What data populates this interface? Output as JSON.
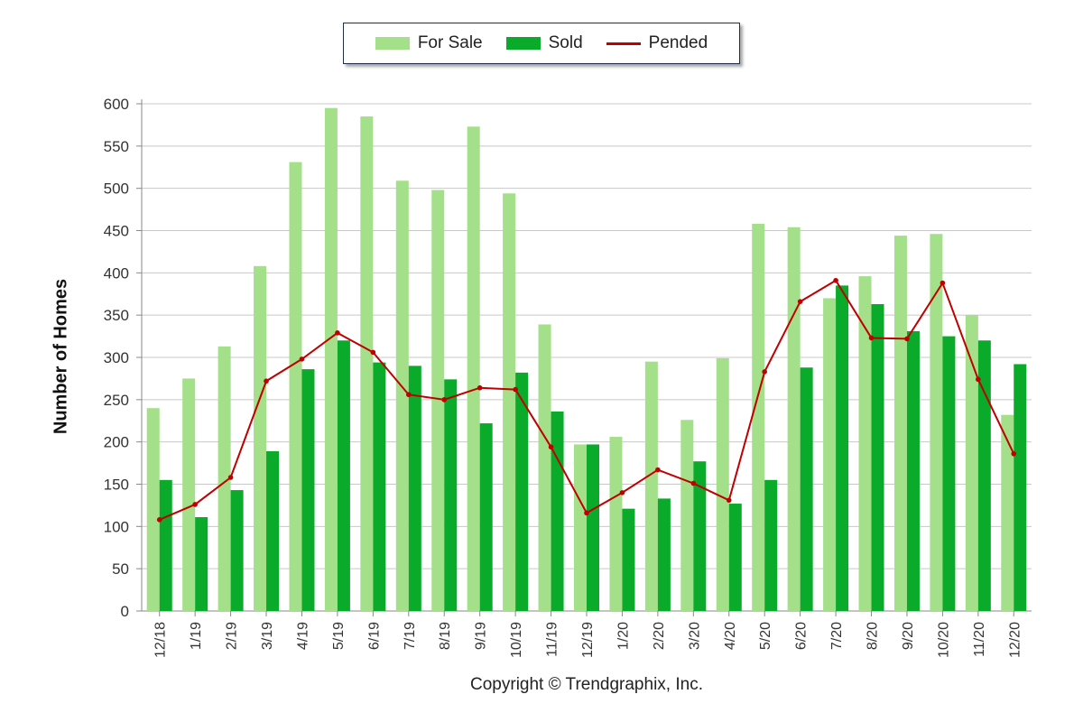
{
  "legend": {
    "for_sale": "For Sale",
    "sold": "Sold",
    "pended": "Pended"
  },
  "copyright": "Copyright © Trendgraphix, Inc.",
  "colors": {
    "for_sale": "#a4df8a",
    "sold": "#0aaa2a",
    "pended": "#c00000",
    "grid": "#c8c8c8",
    "axis": "#888888"
  },
  "chart_data": {
    "type": "bar",
    "ylabel": "Number of Homes",
    "xlabel": "",
    "ylim": [
      0,
      600
    ],
    "yticks": [
      0,
      50,
      100,
      150,
      200,
      250,
      300,
      350,
      400,
      450,
      500,
      550,
      600
    ],
    "grid": true,
    "legend_position": "top-center",
    "categories": [
      "12/18",
      "1/19",
      "2/19",
      "3/19",
      "4/19",
      "5/19",
      "6/19",
      "7/19",
      "8/19",
      "9/19",
      "10/19",
      "11/19",
      "12/19",
      "1/20",
      "2/20",
      "3/20",
      "4/20",
      "5/20",
      "6/20",
      "7/20",
      "8/20",
      "9/20",
      "10/20",
      "11/20",
      "12/20"
    ],
    "series": [
      {
        "name": "For Sale",
        "type": "bar",
        "values": [
          240,
          275,
          313,
          408,
          531,
          595,
          585,
          509,
          498,
          573,
          494,
          339,
          197,
          206,
          295,
          226,
          299,
          458,
          454,
          370,
          396,
          444,
          446,
          350,
          232
        ]
      },
      {
        "name": "Sold",
        "type": "bar",
        "values": [
          155,
          111,
          143,
          189,
          286,
          320,
          294,
          290,
          274,
          222,
          282,
          236,
          197,
          121,
          133,
          177,
          127,
          155,
          288,
          385,
          363,
          331,
          325,
          320,
          292
        ]
      },
      {
        "name": "Pended",
        "type": "line",
        "values": [
          108,
          126,
          158,
          272,
          298,
          329,
          306,
          256,
          250,
          264,
          262,
          194,
          116,
          140,
          167,
          151,
          131,
          283,
          366,
          391,
          323,
          322,
          388,
          274,
          186
        ]
      }
    ]
  }
}
